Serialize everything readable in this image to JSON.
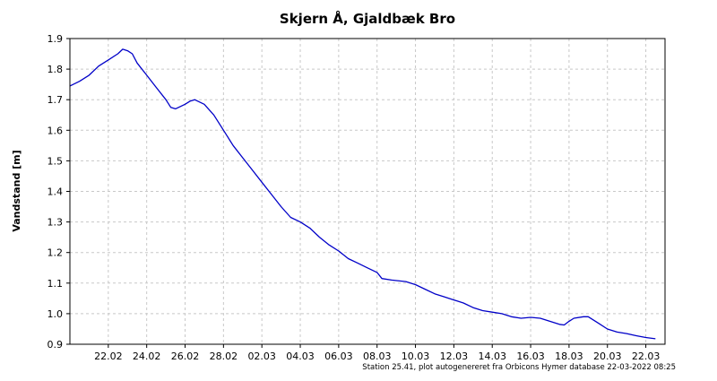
{
  "chart_data": {
    "type": "line",
    "title": "Skjern Å, Gjaldbæk Bro",
    "xlabel": "",
    "ylabel": "Vandstand [m]",
    "footer": "Station 25.41, plot autogenereret fra Orbicons Hymer database 22-03-2022 08:25",
    "ylim": [
      0.9,
      1.9
    ],
    "y_ticks": [
      "0.9",
      "1.0",
      "1.1",
      "1.2",
      "1.3",
      "1.4",
      "1.5",
      "1.6",
      "1.7",
      "1.8",
      "1.9"
    ],
    "x_range": [
      "2022-02-20",
      "2022-03-23"
    ],
    "x_ticks": [
      {
        "date": "2022-02-22",
        "label": "22.02"
      },
      {
        "date": "2022-02-24",
        "label": "24.02"
      },
      {
        "date": "2022-02-26",
        "label": "26.02"
      },
      {
        "date": "2022-02-28",
        "label": "28.02"
      },
      {
        "date": "2022-03-02",
        "label": "02.03"
      },
      {
        "date": "2022-03-04",
        "label": "04.03"
      },
      {
        "date": "2022-03-06",
        "label": "06.03"
      },
      {
        "date": "2022-03-08",
        "label": "08.03"
      },
      {
        "date": "2022-03-10",
        "label": "10.03"
      },
      {
        "date": "2022-03-12",
        "label": "12.03"
      },
      {
        "date": "2022-03-14",
        "label": "14.03"
      },
      {
        "date": "2022-03-16",
        "label": "16.03"
      },
      {
        "date": "2022-03-18",
        "label": "18.03"
      },
      {
        "date": "2022-03-20",
        "label": "20.03"
      },
      {
        "date": "2022-03-22",
        "label": "22.03"
      }
    ],
    "grid": true,
    "series": [
      {
        "color": "#0000c8",
        "points": [
          [
            "2022-02-20T00:00",
            1.745
          ],
          [
            "2022-02-20T12:00",
            1.76
          ],
          [
            "2022-02-21T00:00",
            1.78
          ],
          [
            "2022-02-21T12:00",
            1.81
          ],
          [
            "2022-02-22T00:00",
            1.83
          ],
          [
            "2022-02-22T12:00",
            1.85
          ],
          [
            "2022-02-22T18:00",
            1.865
          ],
          [
            "2022-02-23T00:00",
            1.86
          ],
          [
            "2022-02-23T06:00",
            1.85
          ],
          [
            "2022-02-23T12:00",
            1.82
          ],
          [
            "2022-02-24T00:00",
            1.78
          ],
          [
            "2022-02-24T12:00",
            1.74
          ],
          [
            "2022-02-25T00:00",
            1.7
          ],
          [
            "2022-02-25T06:00",
            1.675
          ],
          [
            "2022-02-25T12:00",
            1.67
          ],
          [
            "2022-02-26T00:00",
            1.685
          ],
          [
            "2022-02-26T06:00",
            1.695
          ],
          [
            "2022-02-26T12:00",
            1.7
          ],
          [
            "2022-02-27T00:00",
            1.685
          ],
          [
            "2022-02-27T12:00",
            1.65
          ],
          [
            "2022-02-28T00:00",
            1.6
          ],
          [
            "2022-02-28T12:00",
            1.55
          ],
          [
            "2022-03-01T00:00",
            1.51
          ],
          [
            "2022-03-01T12:00",
            1.47
          ],
          [
            "2022-03-02T00:00",
            1.43
          ],
          [
            "2022-03-02T12:00",
            1.39
          ],
          [
            "2022-03-03T00:00",
            1.35
          ],
          [
            "2022-03-03T12:00",
            1.315
          ],
          [
            "2022-03-04T00:00",
            1.3
          ],
          [
            "2022-03-04T12:00",
            1.28
          ],
          [
            "2022-03-05T00:00",
            1.25
          ],
          [
            "2022-03-05T12:00",
            1.225
          ],
          [
            "2022-03-06T00:00",
            1.205
          ],
          [
            "2022-03-06T12:00",
            1.18
          ],
          [
            "2022-03-07T00:00",
            1.165
          ],
          [
            "2022-03-07T12:00",
            1.15
          ],
          [
            "2022-03-08T00:00",
            1.135
          ],
          [
            "2022-03-08T06:00",
            1.115
          ],
          [
            "2022-03-08T18:00",
            1.11
          ],
          [
            "2022-03-09T12:00",
            1.105
          ],
          [
            "2022-03-10T00:00",
            1.095
          ],
          [
            "2022-03-10T12:00",
            1.08
          ],
          [
            "2022-03-11T00:00",
            1.065
          ],
          [
            "2022-03-11T12:00",
            1.055
          ],
          [
            "2022-03-12T00:00",
            1.045
          ],
          [
            "2022-03-12T12:00",
            1.035
          ],
          [
            "2022-03-13T00:00",
            1.02
          ],
          [
            "2022-03-13T12:00",
            1.01
          ],
          [
            "2022-03-14T00:00",
            1.005
          ],
          [
            "2022-03-14T12:00",
            1.0
          ],
          [
            "2022-03-15T00:00",
            0.99
          ],
          [
            "2022-03-15T12:00",
            0.985
          ],
          [
            "2022-03-16T00:00",
            0.988
          ],
          [
            "2022-03-16T12:00",
            0.985
          ],
          [
            "2022-03-17T00:00",
            0.975
          ],
          [
            "2022-03-17T12:00",
            0.965
          ],
          [
            "2022-03-17T18:00",
            0.963
          ],
          [
            "2022-03-18T00:00",
            0.975
          ],
          [
            "2022-03-18T06:00",
            0.985
          ],
          [
            "2022-03-18T18:00",
            0.99
          ],
          [
            "2022-03-19T00:00",
            0.99
          ],
          [
            "2022-03-19T12:00",
            0.97
          ],
          [
            "2022-03-20T00:00",
            0.95
          ],
          [
            "2022-03-20T12:00",
            0.94
          ],
          [
            "2022-03-21T00:00",
            0.935
          ],
          [
            "2022-03-21T12:00",
            0.928
          ],
          [
            "2022-03-22T00:00",
            0.922
          ],
          [
            "2022-03-22T12:00",
            0.918
          ]
        ]
      }
    ]
  }
}
